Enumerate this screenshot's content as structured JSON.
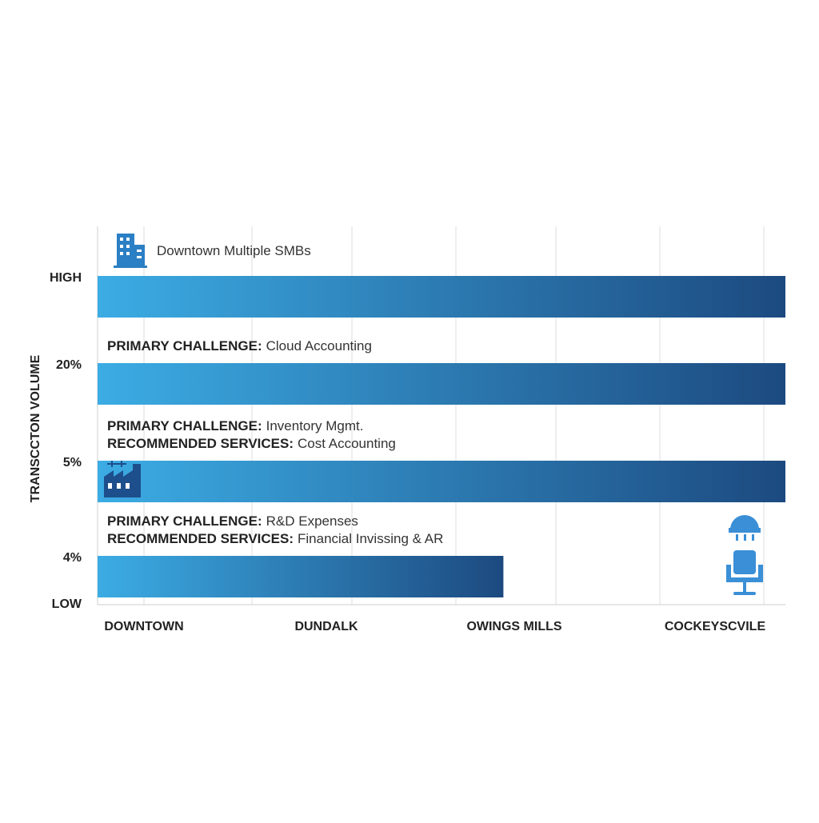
{
  "chart_data": {
    "type": "bar",
    "orientation": "horizontal",
    "y_label": "TRANSCCTON VOLUME",
    "categories": [
      "HIGH",
      "20%",
      "5%",
      "4%"
    ],
    "baseline_label": "LOW",
    "values": [
      100,
      100,
      100,
      59
    ],
    "xlim": [
      0,
      100
    ],
    "x_categories": [
      "DOWNTOWN",
      "DUNDALK",
      "OWINGS MILLS",
      "COCKEYSCVILE"
    ],
    "colors": [
      "#3cacE4",
      "#1c4a80"
    ],
    "annotations": [
      {
        "lines": [
          {
            "text": "Downtown Multiple SMBs"
          }
        ]
      },
      {
        "lines": [
          {
            "label": "PRIMARY CHALLENGE:",
            "text": "Cloud Accounting"
          }
        ]
      },
      {
        "lines": [
          {
            "label": "PRIMARY CHALLENGE:",
            "text": "Inventory Mgmt."
          },
          {
            "label": "RECOMMENDED SERVICES:",
            "text": "Cost Accounting"
          }
        ]
      },
      {
        "lines": [
          {
            "label": "PRIMARY CHALLENGE:",
            "text": "R&D Expenses"
          },
          {
            "label": "RECOMMENDED SERVICES:",
            "text": "Financial Invissing & AR"
          }
        ]
      }
    ]
  }
}
